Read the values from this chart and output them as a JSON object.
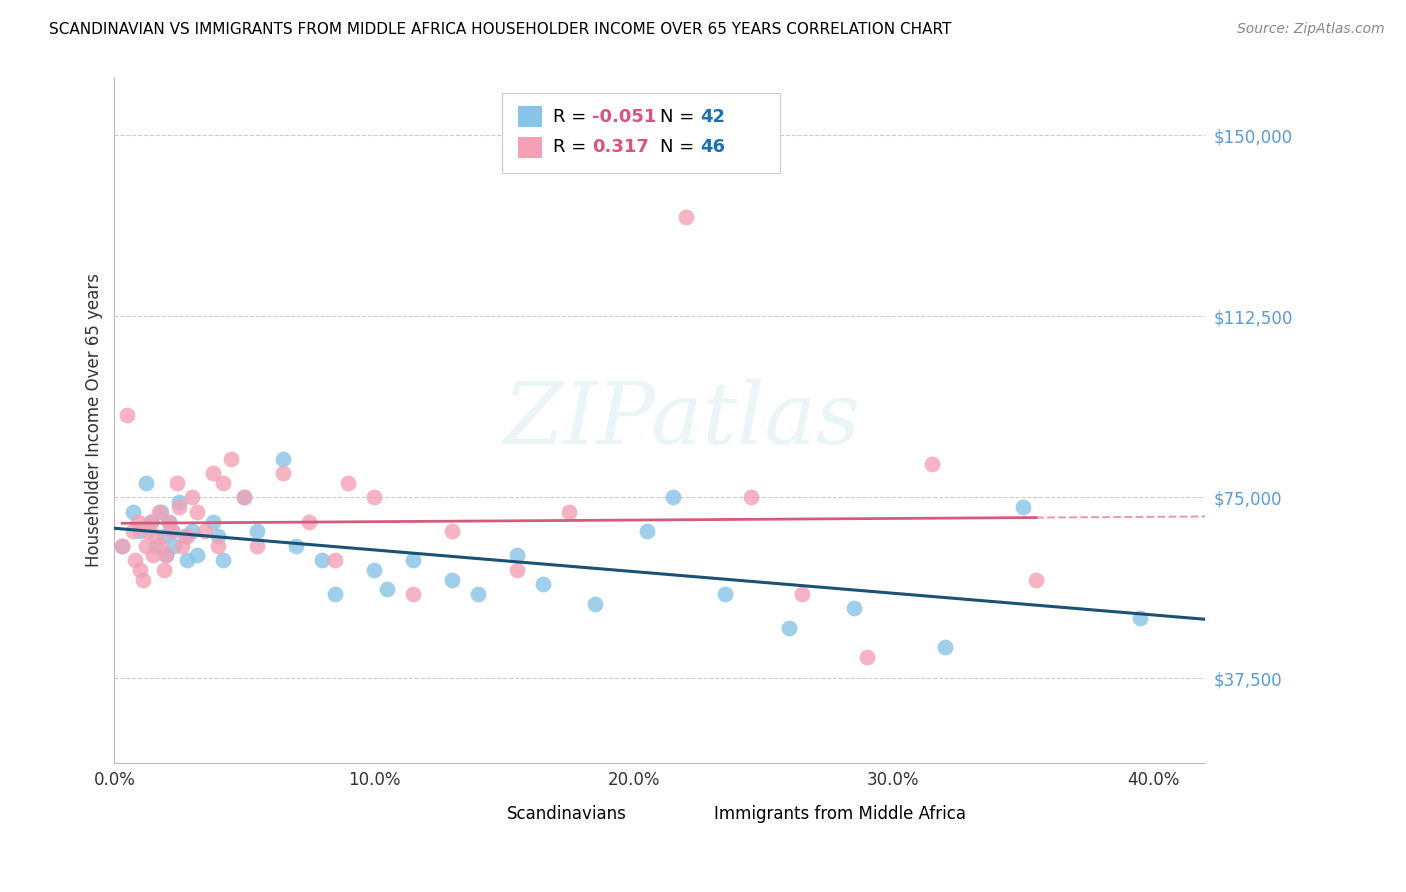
{
  "title": "SCANDINAVIAN VS IMMIGRANTS FROM MIDDLE AFRICA HOUSEHOLDER INCOME OVER 65 YEARS CORRELATION CHART",
  "source": "Source: ZipAtlas.com",
  "ylabel": "Householder Income Over 65 years",
  "legend_label1": "Scandinavians",
  "legend_label2": "Immigrants from Middle Africa",
  "R1": -0.051,
  "N1": 42,
  "R2": 0.317,
  "N2": 46,
  "xlim": [
    0.0,
    0.42
  ],
  "ylim": [
    20000,
    162000
  ],
  "yticks": [
    37500,
    75000,
    112500,
    150000
  ],
  "ytick_labels": [
    "$37,500",
    "$75,000",
    "$112,500",
    "$150,000"
  ],
  "xtick_vals": [
    0.0,
    0.1,
    0.2,
    0.3,
    0.4
  ],
  "xtick_labels": [
    "0.0%",
    "10.0%",
    "20.0%",
    "30.0%",
    "40.0%"
  ],
  "color_blue": "#88c4e8",
  "color_pink": "#f4a0b5",
  "trendline_blue": "#1a5276",
  "trendline_pink": "#d45c7a",
  "watermark": "ZIPatlas",
  "background_color": "#ffffff",
  "scan_x": [
    0.003,
    0.007,
    0.01,
    0.012,
    0.014,
    0.016,
    0.018,
    0.019,
    0.02,
    0.021,
    0.022,
    0.023,
    0.025,
    0.027,
    0.028,
    0.03,
    0.032,
    0.038,
    0.04,
    0.042,
    0.05,
    0.055,
    0.065,
    0.07,
    0.08,
    0.085,
    0.1,
    0.105,
    0.115,
    0.13,
    0.14,
    0.155,
    0.165,
    0.185,
    0.205,
    0.215,
    0.235,
    0.26,
    0.285,
    0.32,
    0.35,
    0.395
  ],
  "scan_y": [
    65000,
    72000,
    68000,
    78000,
    70000,
    65000,
    72000,
    67000,
    63000,
    70000,
    68000,
    65000,
    74000,
    67000,
    62000,
    68000,
    63000,
    70000,
    67000,
    62000,
    75000,
    68000,
    83000,
    65000,
    62000,
    55000,
    60000,
    56000,
    62000,
    58000,
    55000,
    63000,
    57000,
    53000,
    68000,
    75000,
    55000,
    48000,
    52000,
    44000,
    73000,
    50000
  ],
  "imm_x": [
    0.003,
    0.005,
    0.007,
    0.008,
    0.009,
    0.01,
    0.011,
    0.012,
    0.013,
    0.014,
    0.015,
    0.016,
    0.017,
    0.018,
    0.019,
    0.02,
    0.021,
    0.022,
    0.024,
    0.025,
    0.026,
    0.028,
    0.03,
    0.032,
    0.035,
    0.038,
    0.04,
    0.042,
    0.045,
    0.05,
    0.055,
    0.065,
    0.075,
    0.085,
    0.09,
    0.1,
    0.115,
    0.13,
    0.155,
    0.175,
    0.22,
    0.245,
    0.265,
    0.29,
    0.315,
    0.355
  ],
  "imm_y": [
    65000,
    92000,
    68000,
    62000,
    70000,
    60000,
    58000,
    65000,
    68000,
    70000,
    63000,
    67000,
    72000,
    65000,
    60000,
    63000,
    70000,
    68000,
    78000,
    73000,
    65000,
    67000,
    75000,
    72000,
    68000,
    80000,
    65000,
    78000,
    83000,
    75000,
    65000,
    80000,
    70000,
    62000,
    78000,
    75000,
    55000,
    68000,
    60000,
    72000,
    133000,
    75000,
    55000,
    42000,
    82000,
    58000
  ]
}
